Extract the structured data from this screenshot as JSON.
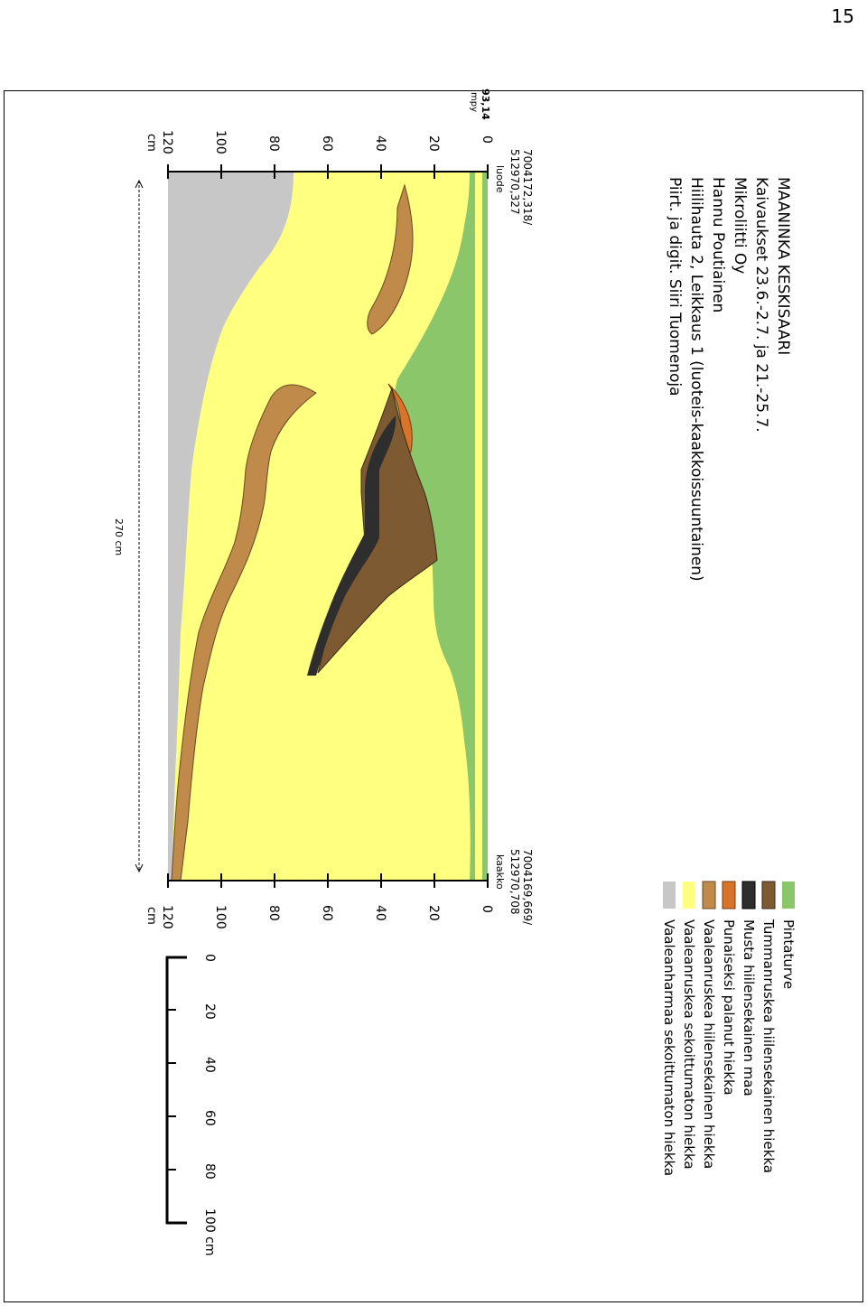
{
  "page_number": "15",
  "title": {
    "lines": [
      "MAANINKA KESKISAARI",
      "Kaivaukset 23.6.-2.7. ja 21.-25.7.",
      "Mikroliitti Oy",
      "Hannu Poutiainen",
      "Hiilihauta 2, Leikkaus 1 (luoteis-kaakkoissuuntainen)",
      "Piirt. ja digit. Siiri Tuomenoja"
    ]
  },
  "elevation_label": "93,14",
  "elevation_unit": "mpy",
  "left_end": {
    "coord_1": "7004172,318/",
    "coord_2": "512970,327",
    "direction": "luode"
  },
  "right_end": {
    "coord_1": "7004169,669/",
    "coord_2": "512970,708",
    "direction": "kaakko"
  },
  "depth_ticks": [
    "0",
    "20",
    "40",
    "60",
    "80",
    "100",
    "120"
  ],
  "depth_unit": "cm",
  "width_label": "270 cm",
  "scale_bar": {
    "ticks": [
      "0",
      "20",
      "40",
      "60",
      "80",
      "100 cm"
    ]
  },
  "legend": [
    {
      "label": "Pintaturve",
      "color": "#8cc66a"
    },
    {
      "label": "Tummanruskea hiilensekainen hiekka",
      "color": "#7d5a32"
    },
    {
      "label": "Musta hiilensekainen maa",
      "color": "#2e2e2e"
    },
    {
      "label": "Punaiseksi palanut hiekka",
      "color": "#d8742a"
    },
    {
      "label": "Vaaleanruskea hiilensekainen hiekka",
      "color": "#c08a4a"
    },
    {
      "label": "Vaaleanruskea sekoittumaton hiekka",
      "color": "#ffff80"
    },
    {
      "label": "Vaaleanharmaa sekoittumaton hiekka",
      "color": "#c7c7c7"
    }
  ]
}
